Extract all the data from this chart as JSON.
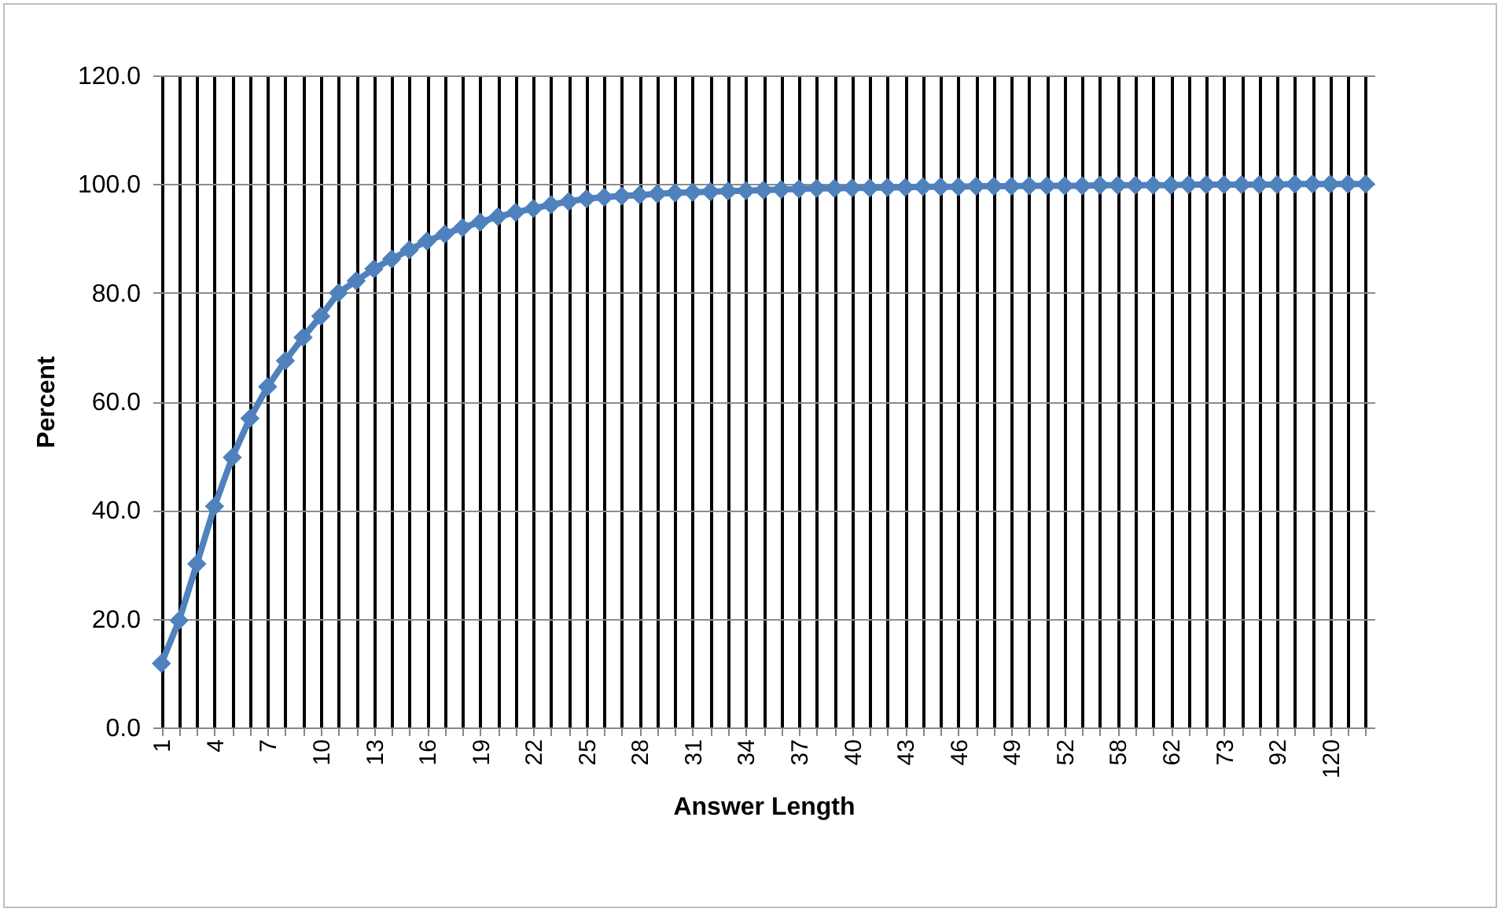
{
  "chart_data": {
    "type": "line",
    "xlabel": "Answer Length",
    "ylabel": "Percent",
    "categories": [
      "1",
      null,
      null,
      "4",
      null,
      null,
      "7",
      null,
      null,
      "10",
      null,
      null,
      "13",
      null,
      null,
      "16",
      null,
      null,
      "19",
      null,
      null,
      "22",
      null,
      null,
      "25",
      null,
      null,
      "28",
      null,
      null,
      "31",
      null,
      null,
      "34",
      null,
      null,
      "37",
      null,
      null,
      "40",
      null,
      null,
      "43",
      null,
      null,
      "46",
      null,
      null,
      "49",
      null,
      null,
      "52",
      null,
      null,
      "58",
      null,
      null,
      "62",
      null,
      null,
      "73",
      null,
      null,
      "92",
      null,
      null,
      "120",
      null,
      null
    ],
    "series": [
      {
        "color": "#4f81bd",
        "values": [
          11.8,
          19.7,
          30.1,
          40.7,
          49.7,
          56.9,
          62.7,
          67.5,
          71.8,
          75.7,
          80.0,
          82.2,
          84.4,
          86.2,
          87.9,
          89.5,
          90.8,
          92.0,
          93.0,
          94.0,
          94.8,
          95.5,
          96.2,
          96.8,
          97.3,
          97.6,
          97.8,
          98.0,
          98.2,
          98.4,
          98.5,
          98.6,
          98.7,
          98.8,
          98.9,
          99.0,
          99.1,
          99.2,
          99.2,
          99.3,
          99.3,
          99.4,
          99.4,
          99.5,
          99.5,
          99.5,
          99.6,
          99.6,
          99.6,
          99.7,
          99.7,
          99.7,
          99.7,
          99.8,
          99.8,
          99.8,
          99.8,
          99.8,
          99.9,
          99.9,
          99.9,
          99.9,
          99.9,
          99.9,
          100.0,
          100.0,
          100.0,
          100.0,
          100.0
        ]
      }
    ],
    "ylim": [
      0,
      120
    ],
    "yticks": [
      {
        "value": 0,
        "label": "0.0"
      },
      {
        "value": 20,
        "label": "20.0"
      },
      {
        "value": 40,
        "label": "40.0"
      },
      {
        "value": 60,
        "label": "60.0"
      },
      {
        "value": 80,
        "label": "80.0"
      },
      {
        "value": 100,
        "label": "100.0"
      },
      {
        "value": 120,
        "label": "120.0"
      }
    ],
    "grid": true,
    "marker": "diamond",
    "line_style": "solid"
  }
}
